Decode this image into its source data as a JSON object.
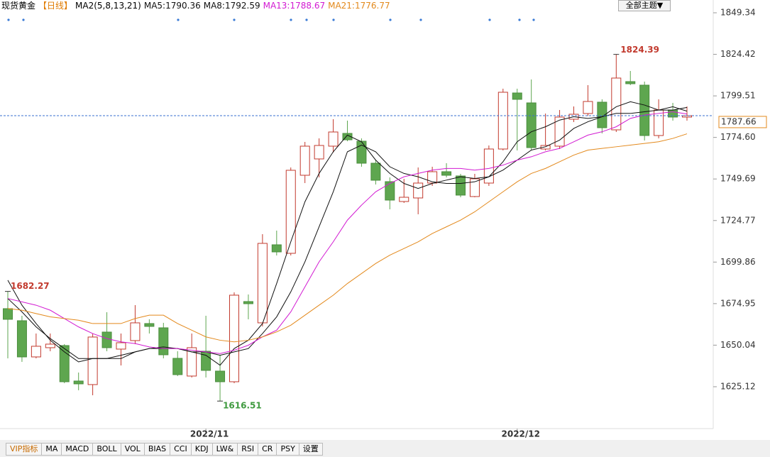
{
  "chart_data": {
    "type": "candlestick",
    "title": "现货黄金",
    "period": "【日线】",
    "indicator": "MA2(5,8,13,21)",
    "theme_button": "全部主题▼",
    "categories": [
      null,
      null,
      null,
      null,
      null,
      null,
      null,
      null,
      null,
      null,
      null,
      null,
      null,
      null,
      "2022/11",
      null,
      null,
      null,
      null,
      null,
      null,
      null,
      null,
      null,
      null,
      null,
      null,
      null,
      null,
      null,
      null,
      null,
      null,
      null,
      null,
      null,
      "2022/12",
      null,
      null,
      null,
      null,
      null,
      null,
      null,
      null,
      null,
      null,
      null,
      null
    ],
    "open": [
      1671.92,
      1664.69,
      1642.99,
      1648.52,
      1649.8,
      1628.53,
      1626.4,
      1657.88,
      1647.67,
      1652.78,
      1662.99,
      1660.44,
      1642.14,
      1631.51,
      1646.4,
      1634.48,
      1628.1,
      1676.18,
      1663.42,
      1710.22,
      1705.11,
      1751.91,
      1761.7,
      1769.36,
      1777.01,
      1772.33,
      1759.14,
      1748.08,
      1736.17,
      1738.3,
      1747.23,
      1754.04,
      1751.49,
      1739.15,
      1747.23,
      1767.65,
      1801.26,
      1795.31,
      1767.65,
      1769.36,
      1785.52,
      1788.93,
      1795.73,
      1779.14,
      1808.07,
      1805.94,
      1775.74,
      1791.05,
      1786.8
    ],
    "high": [
      1682.27,
      1667.67,
      1657.03,
      1657.03,
      1650.65,
      1633.63,
      1657.03,
      1669.8,
      1657.03,
      1674.05,
      1665.54,
      1663.42,
      1646.4,
      1657.03,
      1667.67,
      1644.27,
      1681.71,
      1680.43,
      1716.6,
      1718.73,
      1756.59,
      1771.91,
      1774.04,
      1785.52,
      1784.67,
      1774.04,
      1761.27,
      1750.63,
      1749.78,
      1756.59,
      1757.02,
      1759.14,
      1752.76,
      1752.76,
      1769.78,
      1803.82,
      1803.82,
      1809.35,
      1788.93,
      1791.05,
      1793.18,
      1805.94,
      1797.44,
      1824.39,
      1814.45,
      1808.07,
      1797.44,
      1795.31,
      1793.18
    ],
    "low": [
      1642.14,
      1640.02,
      1642.14,
      1646.4,
      1627.25,
      1623.0,
      1620.0,
      1646.4,
      1637.89,
      1650.65,
      1657.03,
      1642.14,
      1631.51,
      1630.66,
      1630.66,
      1616.51,
      1627.25,
      1665.54,
      1661.29,
      1703.83,
      1703.83,
      1747.23,
      1750.63,
      1765.53,
      1772.33,
      1757.02,
      1746.38,
      1731.49,
      1735.32,
      1728.51,
      1745.53,
      1750.63,
      1738.72,
      1738.72,
      1745.53,
      1766.8,
      1766.8,
      1766.8,
      1766.8,
      1767.65,
      1783.82,
      1787.65,
      1777.01,
      1777.86,
      1805.94,
      1772.76,
      1774.04,
      1784.67,
      1784.67
    ],
    "close": [
      1665.54,
      1642.99,
      1649.38,
      1650.65,
      1628.1,
      1626.83,
      1654.91,
      1648.52,
      1651.5,
      1663.42,
      1661.29,
      1644.27,
      1632.36,
      1648.52,
      1634.91,
      1628.1,
      1680.01,
      1674.9,
      1711.07,
      1705.96,
      1754.89,
      1769.36,
      1769.78,
      1777.86,
      1773.18,
      1759.14,
      1748.93,
      1737.02,
      1738.72,
      1747.23,
      1754.04,
      1751.91,
      1740.0,
      1749.78,
      1767.65,
      1801.69,
      1797.44,
      1768.5,
      1769.78,
      1786.8,
      1788.5,
      1796.16,
      1780.42,
      1810.2,
      1806.8,
      1775.74,
      1791.05,
      1786.8,
      1787.66
    ],
    "up_color": "#c23a2e",
    "down_color": "#5ea64f",
    "series": [
      {
        "name": "MA5:1790.36",
        "color": "#111111",
        "values": [
          1689,
          1674,
          1663,
          1653,
          1646,
          1640,
          1642,
          1642,
          1642,
          1646,
          1648,
          1649,
          1648,
          1646,
          1644,
          1638,
          1648,
          1653,
          1663,
          1687,
          1712,
          1736,
          1753,
          1766,
          1776,
          1772,
          1761,
          1753,
          1747,
          1744,
          1747,
          1749,
          1751,
          1750,
          1751,
          1760,
          1772,
          1778,
          1781,
          1785,
          1787,
          1786,
          1787,
          1793,
          1796,
          1794,
          1791,
          1793,
          1790.36
        ]
      },
      {
        "name": "MA8:1792.59",
        "color": "#111111",
        "values": [
          1678,
          1670,
          1661,
          1654,
          1648,
          1642,
          1642,
          1642,
          1644,
          1646,
          1648,
          1648,
          1648,
          1646,
          1646,
          1644,
          1646,
          1648,
          1657,
          1667,
          1682,
          1700,
          1721,
          1742,
          1766,
          1770,
          1766,
          1757,
          1753,
          1751,
          1748,
          1747,
          1747,
          1748,
          1751,
          1755,
          1761,
          1767,
          1769,
          1773,
          1780,
          1784,
          1787,
          1789,
          1789,
          1790,
          1791,
          1791,
          1792.59
        ]
      },
      {
        "name": "MA13:1788.67",
        "color": "#d21ad2",
        "values": [
          1678,
          1676,
          1674,
          1671,
          1666,
          1661,
          1657,
          1654,
          1652,
          1651,
          1649,
          1648,
          1648,
          1647,
          1646,
          1645,
          1647,
          1650,
          1655,
          1659,
          1670,
          1685,
          1700,
          1712,
          1725,
          1734,
          1742,
          1747,
          1751,
          1753,
          1755,
          1756,
          1756,
          1755,
          1756,
          1758,
          1761,
          1763,
          1766,
          1768,
          1772,
          1776,
          1778,
          1781,
          1786,
          1788,
          1789,
          1790,
          1788.67
        ]
      },
      {
        "name": "MA21:1776.77",
        "color": "#e3891c",
        "values": [
          1672,
          1671,
          1669,
          1667,
          1666,
          1665,
          1663,
          1663,
          1663,
          1666,
          1668,
          1668,
          1663,
          1659,
          1655,
          1653,
          1652,
          1653,
          1655,
          1658,
          1662,
          1668,
          1674,
          1680,
          1687,
          1693,
          1699,
          1704,
          1708,
          1712,
          1717,
          1721,
          1725,
          1730,
          1736,
          1742,
          1748,
          1753,
          1756,
          1760,
          1764,
          1767,
          1768,
          1769,
          1770,
          1771,
          1772,
          1774,
          1776.77
        ]
      }
    ],
    "ylim": [
      1601.7,
      1857.0
    ],
    "yticks": [
      1625.12,
      1650.04,
      1674.95,
      1699.86,
      1724.77,
      1749.69,
      {
        "value": 1774.6,
        "label": "1774.60"
      },
      1799.51,
      1824.42,
      1849.34
    ],
    "tabs": [
      "VIP指标",
      "MA",
      "MACD",
      "BOLL",
      "VOL",
      "BIAS",
      "CCI",
      "KDJ",
      "LW&",
      "RSI",
      "CR",
      "PSY",
      "设置"
    ]
  }
}
